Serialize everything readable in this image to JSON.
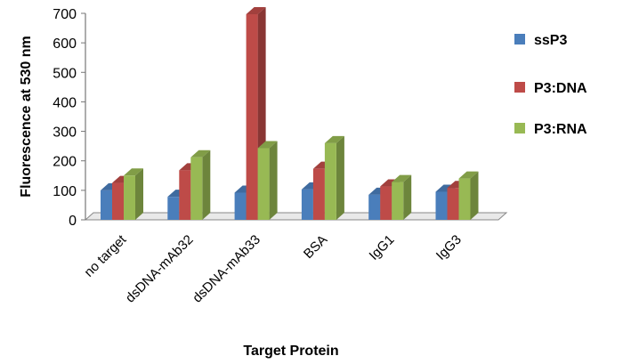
{
  "chart_data": {
    "type": "bar",
    "categories": [
      "no target",
      "dsDNA-mAb32",
      "dsDNA-mAb33",
      "BSA",
      "IgG1",
      "IgG3"
    ],
    "series": [
      {
        "name": "ssP3",
        "values": [
          100,
          78,
          92,
          103,
          85,
          95
        ],
        "color": "#4a7ebb"
      },
      {
        "name": "P3:DNA",
        "values": [
          125,
          168,
          697,
          173,
          113,
          108
        ],
        "color": "#be4b48"
      },
      {
        "name": "P3:RNA",
        "values": [
          150,
          212,
          243,
          260,
          128,
          140
        ],
        "color": "#98b954"
      }
    ],
    "title": "",
    "xlabel": "Target Protein",
    "ylabel": "Fluorescence at 530 nm",
    "ylim": [
      0,
      700
    ],
    "yticks": [
      0,
      100,
      200,
      300,
      400,
      500,
      600,
      700
    ],
    "style": "3d-clustered-column",
    "legend_position": "right",
    "grid": false
  }
}
